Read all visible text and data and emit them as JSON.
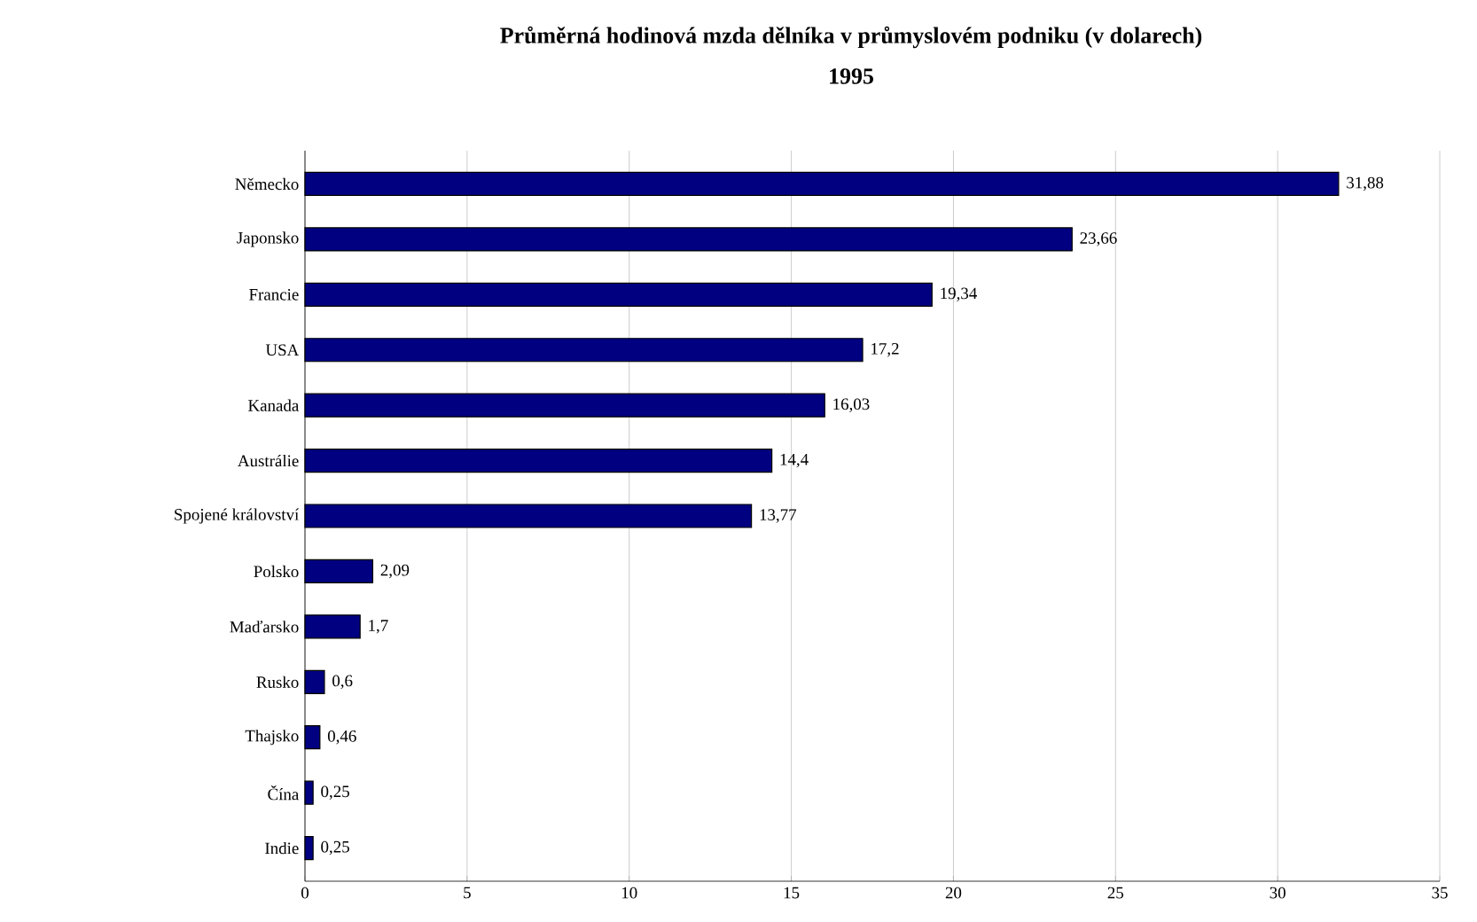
{
  "chart_data": {
    "type": "bar",
    "orientation": "horizontal",
    "title": "Průměrná hodinová mzda dělníka v průmyslovém podniku (v dolarech)",
    "subtitle": "1995",
    "categories": [
      "Německo",
      "Japonsko",
      "Francie",
      "USA",
      "Kanada",
      "Austrálie",
      "Spojené království",
      "Polsko",
      "Maďarsko",
      "Rusko",
      "Thajsko",
      "Čína",
      "Indie"
    ],
    "values": [
      31.88,
      23.66,
      19.34,
      17.2,
      16.03,
      14.4,
      13.77,
      2.09,
      1.7,
      0.6,
      0.46,
      0.25,
      0.25
    ],
    "value_labels": [
      "31,88",
      "23,66",
      "19,34",
      "17,2",
      "16,03",
      "14,4",
      "13,77",
      "2,09",
      "1,7",
      "0,6",
      "0,46",
      "0,25",
      "0,25"
    ],
    "color": "#000080",
    "xlim": [
      0,
      35
    ],
    "xticks": [
      0,
      5,
      10,
      15,
      20,
      25,
      30,
      35
    ],
    "grid": "x"
  }
}
